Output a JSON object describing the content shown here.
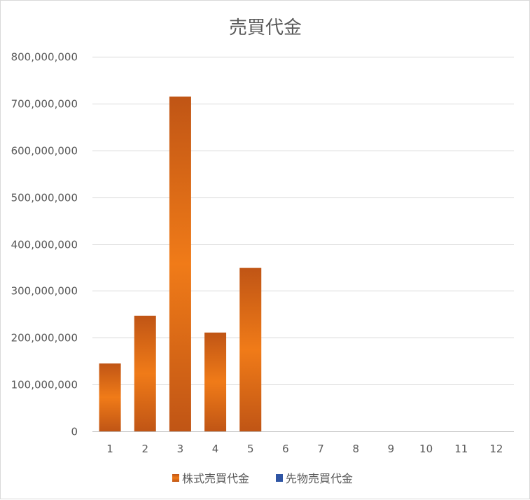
{
  "chart_data": {
    "type": "bar",
    "title": "売買代金",
    "categories": [
      "1",
      "2",
      "3",
      "4",
      "5",
      "6",
      "7",
      "8",
      "9",
      "10",
      "11",
      "12"
    ],
    "series": [
      {
        "name": "株式売買代金",
        "color": "#e8711c",
        "values": [
          145000000,
          247000000,
          715000000,
          211000000,
          349000000,
          null,
          null,
          null,
          null,
          null,
          null,
          null
        ]
      },
      {
        "name": "先物売買代金",
        "color": "#2f55a4",
        "values": [
          null,
          null,
          null,
          null,
          null,
          null,
          null,
          null,
          null,
          null,
          null,
          null
        ]
      }
    ],
    "ylim": [
      0,
      800000000
    ],
    "yticks": [
      "0",
      "100,000,000",
      "200,000,000",
      "300,000,000",
      "400,000,000",
      "500,000,000",
      "600,000,000",
      "700,000,000",
      "800,000,000"
    ],
    "grid": true,
    "legend": "bottom"
  }
}
